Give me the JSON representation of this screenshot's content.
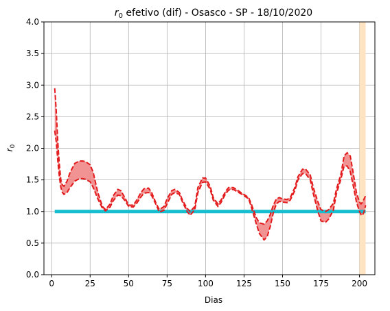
{
  "chart_data": {
    "type": "line",
    "title_symbol": "r",
    "title_symbol_sub": "0",
    "title_rest": " efetivo (dif) - Osasco - SP - 18/10/2020",
    "xlabel": "Dias",
    "ylabel_symbol": "r",
    "ylabel_sub": "0",
    "xlim": [
      -5,
      210
    ],
    "ylim": [
      0,
      4
    ],
    "xticks": [
      0,
      25,
      50,
      75,
      100,
      125,
      150,
      175,
      200
    ],
    "yticks": [
      0.0,
      0.5,
      1.0,
      1.5,
      2.0,
      2.5,
      3.0,
      3.5,
      4.0
    ],
    "ytick_labels": [
      "0.0",
      "0.5",
      "1.0",
      "1.5",
      "2.0",
      "2.5",
      "3.0",
      "3.5",
      "4.0"
    ],
    "grid": true,
    "reference_line": {
      "y": 1.0,
      "x": [
        2,
        204
      ],
      "color": "#17becf"
    },
    "highlight_band": {
      "x": [
        200,
        204
      ],
      "color": "#ffe4c4"
    },
    "series": [
      {
        "role": "upper",
        "color": "#e31a1c",
        "x": [
          2,
          3,
          4,
          5,
          6,
          7,
          8,
          10,
          12,
          15,
          18,
          20,
          22,
          25,
          27,
          30,
          33,
          35,
          38,
          40,
          43,
          45,
          48,
          50,
          53,
          55,
          58,
          60,
          63,
          65,
          68,
          70,
          73,
          75,
          78,
          80,
          83,
          85,
          88,
          90,
          93,
          95,
          98,
          100,
          103,
          105,
          108,
          110,
          113,
          115,
          118,
          120,
          123,
          125,
          128,
          130,
          133,
          135,
          138,
          140,
          142,
          144,
          146,
          148,
          150,
          153,
          155,
          158,
          160,
          163,
          165,
          168,
          170,
          173,
          175,
          178,
          180,
          183,
          185,
          188,
          190,
          192,
          194,
          196,
          198,
          200,
          201,
          202,
          203,
          204
        ],
        "values": [
          2.95,
          2.6,
          2.1,
          1.75,
          1.5,
          1.42,
          1.4,
          1.48,
          1.62,
          1.76,
          1.8,
          1.8,
          1.79,
          1.74,
          1.62,
          1.3,
          1.08,
          1.03,
          1.12,
          1.25,
          1.35,
          1.33,
          1.2,
          1.1,
          1.1,
          1.17,
          1.3,
          1.36,
          1.37,
          1.3,
          1.12,
          1.03,
          1.08,
          1.2,
          1.33,
          1.35,
          1.3,
          1.18,
          1.05,
          1.0,
          1.08,
          1.38,
          1.53,
          1.53,
          1.4,
          1.22,
          1.12,
          1.18,
          1.32,
          1.38,
          1.38,
          1.35,
          1.3,
          1.27,
          1.22,
          1.1,
          0.9,
          0.82,
          0.8,
          0.85,
          0.95,
          1.1,
          1.2,
          1.22,
          1.2,
          1.19,
          1.22,
          1.38,
          1.55,
          1.67,
          1.67,
          1.58,
          1.38,
          1.15,
          1.03,
          1.0,
          1.03,
          1.13,
          1.35,
          1.6,
          1.88,
          1.93,
          1.88,
          1.6,
          1.3,
          1.15,
          1.12,
          1.15,
          1.2,
          1.25
        ]
      },
      {
        "role": "lower",
        "color": "#e31a1c",
        "x": [
          2,
          3,
          4,
          5,
          6,
          7,
          8,
          10,
          12,
          15,
          18,
          20,
          22,
          25,
          27,
          30,
          33,
          35,
          38,
          40,
          43,
          45,
          48,
          50,
          53,
          55,
          58,
          60,
          63,
          65,
          68,
          70,
          73,
          75,
          78,
          80,
          83,
          85,
          88,
          90,
          93,
          95,
          98,
          100,
          103,
          105,
          108,
          110,
          113,
          115,
          118,
          120,
          123,
          125,
          128,
          130,
          133,
          135,
          138,
          140,
          142,
          144,
          146,
          148,
          150,
          153,
          155,
          158,
          160,
          163,
          165,
          168,
          170,
          173,
          175,
          178,
          180,
          183,
          185,
          188,
          190,
          192,
          194,
          196,
          198,
          200,
          201,
          202,
          203,
          204
        ],
        "values": [
          2.28,
          2.1,
          1.8,
          1.55,
          1.38,
          1.3,
          1.27,
          1.3,
          1.38,
          1.48,
          1.52,
          1.52,
          1.51,
          1.47,
          1.38,
          1.2,
          1.05,
          1.01,
          1.07,
          1.17,
          1.26,
          1.25,
          1.16,
          1.08,
          1.07,
          1.12,
          1.23,
          1.29,
          1.3,
          1.25,
          1.1,
          0.99,
          1.02,
          1.12,
          1.27,
          1.3,
          1.27,
          1.15,
          1.0,
          0.94,
          1.03,
          1.3,
          1.46,
          1.47,
          1.35,
          1.18,
          1.08,
          1.14,
          1.28,
          1.34,
          1.35,
          1.32,
          1.28,
          1.25,
          1.2,
          1.05,
          0.8,
          0.65,
          0.55,
          0.6,
          0.76,
          0.98,
          1.12,
          1.16,
          1.15,
          1.14,
          1.18,
          1.33,
          1.5,
          1.6,
          1.6,
          1.5,
          1.28,
          1.0,
          0.85,
          0.83,
          0.88,
          1.02,
          1.28,
          1.52,
          1.72,
          1.72,
          1.63,
          1.4,
          1.15,
          1.0,
          0.95,
          0.94,
          1.0,
          1.1
        ]
      }
    ]
  }
}
